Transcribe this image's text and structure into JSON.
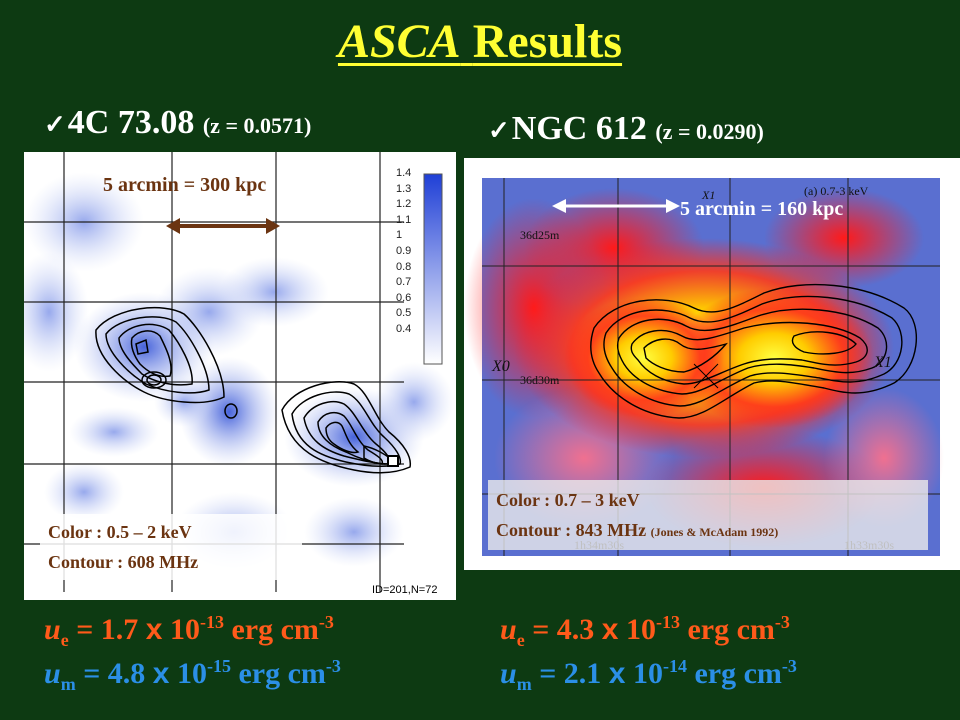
{
  "title": {
    "italic": "ASCA",
    "rest": "Results"
  },
  "left": {
    "check": "✓",
    "name": "4C 73.08",
    "redshift": "(z = 0.0571)",
    "scale_label": "5 arcmin = 300 kpc",
    "colorbar_ticks": [
      "1.4",
      "1.3",
      "1.2",
      "1.1",
      "1",
      "0.9",
      "0.8",
      "0.7",
      "0.6",
      "0.5",
      "0.4"
    ],
    "footer_id": "ID=201,N=72",
    "legend_color": "Color     :  0.5 – 2 keV",
    "legend_contour": "Contour :  608 MHz",
    "ue": {
      "label": "u",
      "sub": "e",
      "eq": " = 1.7 ",
      "x": "x",
      "base": " 10",
      "exp": "-13",
      "unit": " erg cm",
      "unit_exp": "-3"
    },
    "um": {
      "label": "u",
      "sub": "m",
      "eq": " = 4.8 ",
      "x": "x",
      "base": " 10",
      "exp": "-15",
      "unit": " erg cm",
      "unit_exp": "-3"
    }
  },
  "right": {
    "check": "✓",
    "name": "NGC 612",
    "redshift": "(z = 0.0290)",
    "scale_label": "5 arcmin = 160 kpc",
    "panel_caption": "(a) 0.7-3 keV",
    "dec_label_1": "36d25m",
    "dec_label_2": "36d30m",
    "x_labels": [
      "X0",
      "X1",
      "X1"
    ],
    "ra_labels": [
      "1h34m30s",
      "1h33m30s"
    ],
    "legend_color": "Color     :  0.7 – 3 keV",
    "legend_contour": "Contour :  843 MHz",
    "legend_ref": "(Jones & McAdam 1992)",
    "ue": {
      "label": "u",
      "sub": "e",
      "eq": " = 4.3 ",
      "x": "x",
      "base": " 10",
      "exp": "-13",
      "unit": " erg cm",
      "unit_exp": "-3"
    },
    "um": {
      "label": "u",
      "sub": "m",
      "eq": " = 2.1 ",
      "x": "x",
      "base": " 10",
      "exp": "-14",
      "unit": " erg cm",
      "unit_exp": "-3"
    }
  },
  "colors": {
    "background": "#0d3a12",
    "title": "#ffff33",
    "ue": "#ff5a1a",
    "um": "#2b8fe6"
  }
}
